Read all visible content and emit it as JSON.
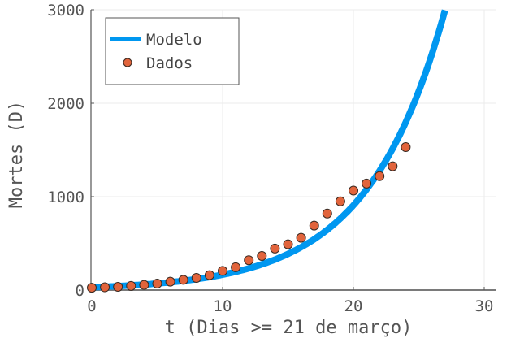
{
  "chart_data": {
    "type": "line+scatter",
    "title": "",
    "xlabel": "t (Dias >= 21 de março)",
    "ylabel": "Mortes (D)",
    "xlim": [
      0,
      31
    ],
    "ylim": [
      0,
      3000
    ],
    "xticks": [
      0,
      10,
      20,
      30
    ],
    "xtick_labels": [
      "0",
      "10",
      "20",
      "30"
    ],
    "yticks": [
      0,
      1000,
      2000,
      3000
    ],
    "ytick_labels": [
      "0",
      "1000",
      "2000",
      "3000"
    ],
    "grid": true,
    "legend_position": "top-left",
    "series": [
      {
        "name": "Modelo",
        "kind": "line",
        "color": "#0097f0",
        "model": {
          "form": "A*exp(r*t)",
          "A": 30,
          "r": 0.1705
        },
        "x": [
          0,
          2,
          4,
          6,
          8,
          10,
          12,
          14,
          16,
          18,
          20,
          22,
          24,
          26,
          27.1
        ],
        "values": [
          30,
          42,
          59,
          83,
          117,
          165,
          232,
          327,
          460,
          648,
          912,
          1284,
          1808,
          2546,
          3045
        ]
      },
      {
        "name": "Dados",
        "kind": "scatter",
        "color": "#e1643c",
        "x": [
          0,
          1,
          2,
          3,
          4,
          5,
          6,
          7,
          8,
          9,
          10,
          11,
          12,
          13,
          14,
          15,
          16,
          17,
          18,
          19,
          20,
          21,
          22,
          23,
          24
        ],
        "values": [
          25,
          30,
          35,
          45,
          55,
          70,
          90,
          110,
          130,
          160,
          205,
          245,
          320,
          365,
          445,
          490,
          560,
          690,
          820,
          950,
          1065,
          1140,
          1220,
          1325,
          1530
        ]
      }
    ]
  }
}
